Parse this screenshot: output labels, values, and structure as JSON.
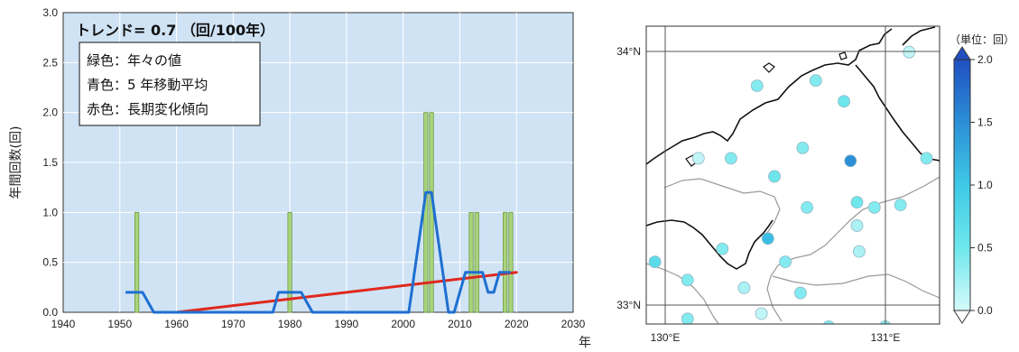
{
  "chart_data": [
    {
      "type": "bar",
      "trend_label": "トレンド= 0.7 （回/100年）",
      "legend": [
        "緑色：年々の値",
        "青色：5 年移動平均",
        "赤色：長期変化傾向"
      ],
      "ylabel": "年間回数(回)",
      "xlabel": "年",
      "xlim": [
        1940,
        2030
      ],
      "ylim": [
        0,
        3.0
      ],
      "xticks": [
        1940,
        1950,
        1960,
        1970,
        1980,
        1990,
        2000,
        2010,
        2020,
        2030
      ],
      "yticks": [
        "0.0",
        "0.5",
        "1.0",
        "1.5",
        "2.0",
        "2.5",
        "3.0"
      ],
      "series": [
        {
          "kind": "bars",
          "color": "#a9d47c",
          "points": [
            [
              1953,
              1
            ],
            [
              1980,
              1
            ],
            [
              2004,
              2
            ],
            [
              2005,
              2
            ],
            [
              2012,
              1
            ],
            [
              2013,
              1
            ],
            [
              2018,
              1
            ],
            [
              2019,
              1
            ]
          ]
        },
        {
          "kind": "line",
          "color": "#1f6fd1",
          "points": [
            [
              1951,
              0.2
            ],
            [
              1954,
              0.2
            ],
            [
              1956,
              0
            ],
            [
              1977,
              0
            ],
            [
              1978,
              0.2
            ],
            [
              1982,
              0.2
            ],
            [
              1984,
              0
            ],
            [
              2001,
              0
            ],
            [
              2002,
              0.4
            ],
            [
              2003,
              0.8
            ],
            [
              2004,
              1.2
            ],
            [
              2005,
              1.2
            ],
            [
              2006,
              0.8
            ],
            [
              2007,
              0.4
            ],
            [
              2008,
              0
            ],
            [
              2009,
              0
            ],
            [
              2010,
              0.2
            ],
            [
              2011,
              0.4
            ],
            [
              2014,
              0.4
            ],
            [
              2015,
              0.2
            ],
            [
              2016,
              0.2
            ],
            [
              2017,
              0.4
            ],
            [
              2018,
              0.4
            ],
            [
              2019,
              0.4
            ]
          ]
        },
        {
          "kind": "trend",
          "color": "#e0281e",
          "points": [
            [
              1960,
              0
            ],
            [
              2020,
              0.4
            ]
          ]
        }
      ]
    },
    {
      "type": "scatter",
      "map_labels": {
        "lat_top": "34°N",
        "lat_bottom": "33°N",
        "lon_left": "130°E",
        "lon_right": "131°E"
      },
      "lon_range": [
        129.95,
        131.3
      ],
      "lat_range": [
        32.95,
        34.1
      ],
      "colorbar": {
        "unit": "（単位：回）",
        "ticks": [
          "0.0",
          "0.5",
          "1.0",
          "1.5",
          "2.0"
        ],
        "range": [
          0,
          2.0
        ]
      },
      "stations": [
        [
          131.16,
          34.0,
          0.1
        ],
        [
          130.46,
          33.87,
          0.4
        ],
        [
          130.73,
          33.89,
          0.4
        ],
        [
          130.86,
          33.81,
          0.5
        ],
        [
          130.19,
          33.59,
          0.1
        ],
        [
          130.34,
          33.59,
          0.4
        ],
        [
          130.67,
          33.63,
          0.4
        ],
        [
          130.89,
          33.58,
          1.5
        ],
        [
          131.24,
          33.59,
          0.4
        ],
        [
          130.54,
          33.52,
          0.5
        ],
        [
          130.69,
          33.4,
          0.4
        ],
        [
          130.92,
          33.42,
          0.5
        ],
        [
          131.0,
          33.4,
          0.4
        ],
        [
          131.12,
          33.41,
          0.4
        ],
        [
          130.51,
          33.28,
          1.1
        ],
        [
          130.3,
          33.24,
          0.4
        ],
        [
          129.99,
          33.19,
          0.7
        ],
        [
          130.14,
          33.12,
          0.4
        ],
        [
          130.59,
          33.19,
          0.4
        ],
        [
          130.4,
          33.09,
          0.2
        ],
        [
          130.93,
          33.23,
          0.2
        ],
        [
          130.92,
          33.33,
          0.2
        ],
        [
          130.66,
          33.07,
          0.4
        ],
        [
          130.48,
          32.99,
          0.1
        ],
        [
          130.14,
          32.97,
          0.4
        ],
        [
          130.79,
          32.94,
          0.4
        ],
        [
          131.05,
          32.94,
          0.4
        ]
      ]
    }
  ]
}
